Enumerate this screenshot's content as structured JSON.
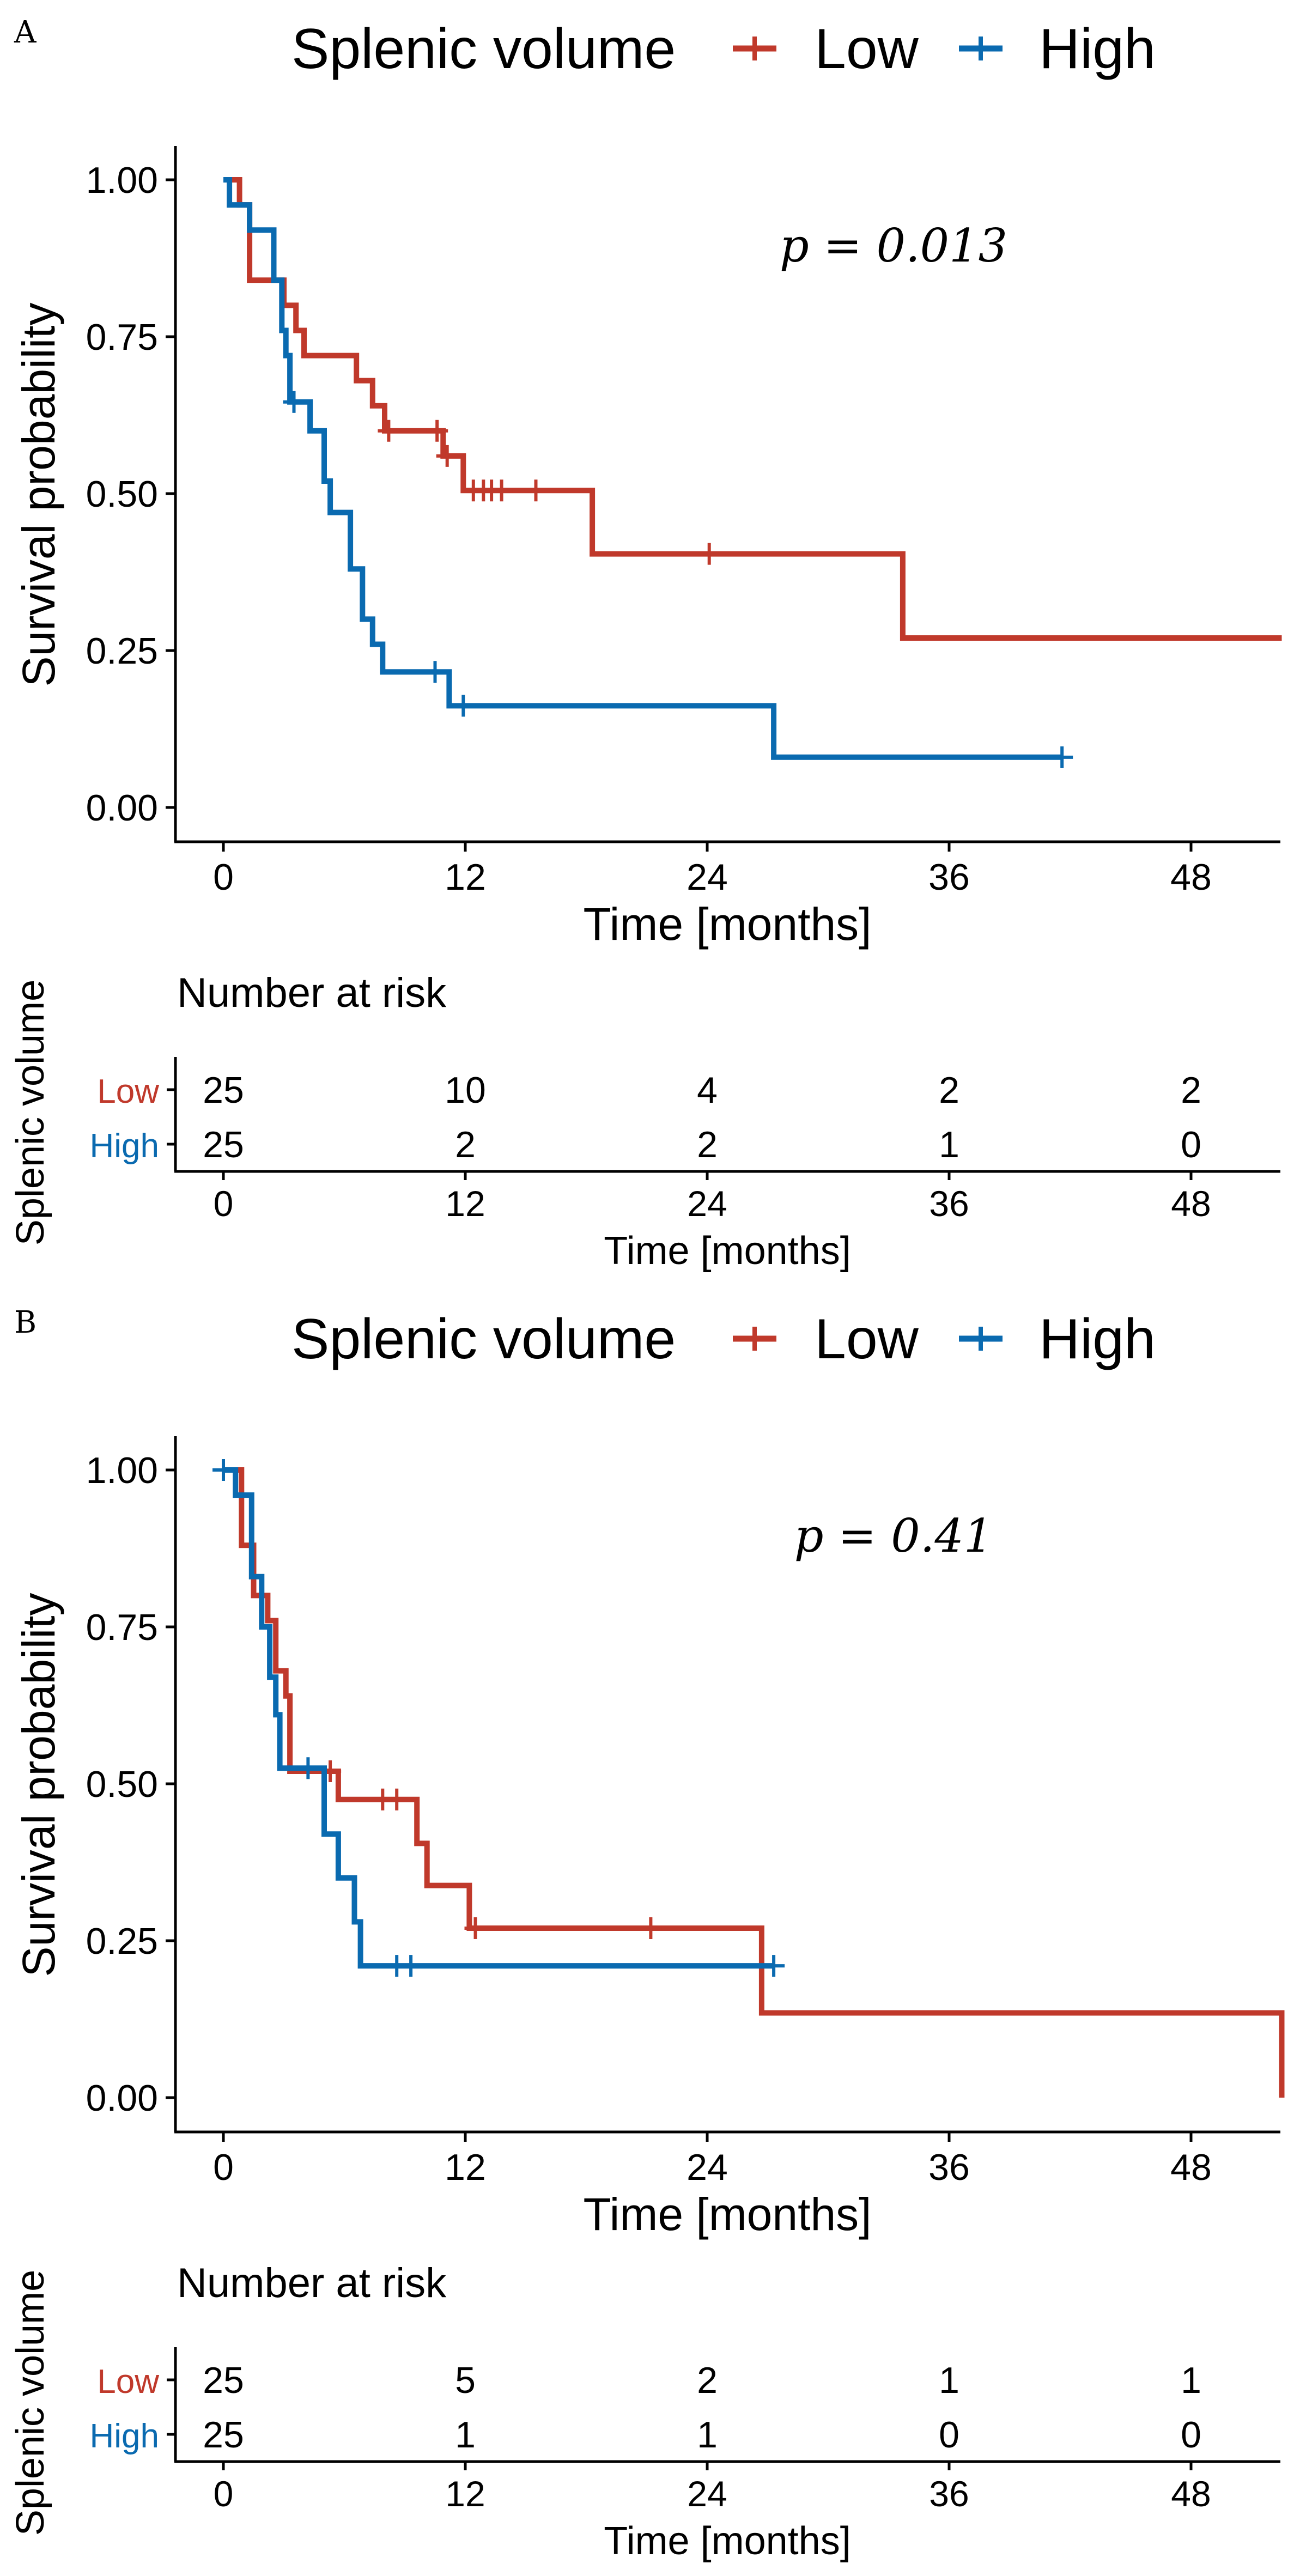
{
  "panels": [
    {
      "letter": "A",
      "legend": {
        "title": "Splenic volume",
        "labels": [
          "Low",
          "High"
        ]
      },
      "pvalue": "p = 0.013",
      "risk_table": {
        "title": "Number at risk",
        "ylabel": "Splenic volume",
        "rows": [
          {
            "label": "Low",
            "values": [
              "25",
              "10",
              "4",
              "2",
              "2"
            ]
          },
          {
            "label": "High",
            "values": [
              "25",
              "2",
              "2",
              "1",
              "0"
            ]
          }
        ],
        "xlabel": "Time [months]",
        "xticks": [
          "0",
          "12",
          "24",
          "36",
          "48"
        ]
      }
    },
    {
      "letter": "B",
      "legend": {
        "title": "Splenic volume",
        "labels": [
          "Low",
          "High"
        ]
      },
      "pvalue": "p = 0.41",
      "risk_table": {
        "title": "Number at risk",
        "ylabel": "Splenic volume",
        "rows": [
          {
            "label": "Low",
            "values": [
              "25",
              "5",
              "2",
              "1",
              "1"
            ]
          },
          {
            "label": "High",
            "values": [
              "25",
              "1",
              "1",
              "0",
              "0"
            ]
          }
        ],
        "xlabel": "Time [months]",
        "xticks": [
          "0",
          "12",
          "24",
          "36",
          "48"
        ]
      }
    }
  ],
  "colors": {
    "low": "#c0392b",
    "high": "#0a6ab0",
    "axis": "#000000"
  },
  "chart_data": [
    {
      "type": "line",
      "step": true,
      "xlabel": "Time [months]",
      "ylabel": "Survival probability",
      "xlim": [
        -2.5,
        52.5
      ],
      "ylim": [
        -0.05,
        1.05
      ],
      "xticks": [
        "0",
        "12",
        "24",
        "36",
        "48"
      ],
      "yticks": [
        "0.00",
        "0.25",
        "0.50",
        "0.75",
        "1.00"
      ],
      "legend_position": "top",
      "series": [
        {
          "name": "Low",
          "color": "#c0392b",
          "points": [
            [
              0,
              1.0
            ],
            [
              0.8,
              1.0
            ],
            [
              0.8,
              0.96
            ],
            [
              1.3,
              0.96
            ],
            [
              1.3,
              0.84
            ],
            [
              3,
              0.84
            ],
            [
              3,
              0.8
            ],
            [
              3.6,
              0.8
            ],
            [
              3.6,
              0.76
            ],
            [
              4,
              0.76
            ],
            [
              4,
              0.72
            ],
            [
              6.6,
              0.72
            ],
            [
              6.6,
              0.68
            ],
            [
              7.4,
              0.68
            ],
            [
              7.4,
              0.64
            ],
            [
              8,
              0.64
            ],
            [
              8,
              0.6
            ],
            [
              10.9,
              0.6
            ],
            [
              10.9,
              0.56
            ],
            [
              11.9,
              0.56
            ],
            [
              11.9,
              0.505
            ],
            [
              18.3,
              0.505
            ],
            [
              18.3,
              0.404
            ],
            [
              33.7,
              0.404
            ],
            [
              33.7,
              0.27
            ],
            [
              52.5,
              0.27
            ]
          ],
          "censor": [
            [
              8.2,
              0.6
            ],
            [
              10.6,
              0.6
            ],
            [
              11.1,
              0.56
            ],
            [
              12.4,
              0.505
            ],
            [
              12.9,
              0.505
            ],
            [
              13.3,
              0.505
            ],
            [
              13.8,
              0.505
            ],
            [
              15.5,
              0.505
            ],
            [
              24.1,
              0.404
            ]
          ]
        },
        {
          "name": "High",
          "color": "#0a6ab0",
          "points": [
            [
              0,
              1.0
            ],
            [
              0.3,
              1.0
            ],
            [
              0.3,
              0.96
            ],
            [
              1.3,
              0.96
            ],
            [
              1.3,
              0.92
            ],
            [
              2.5,
              0.92
            ],
            [
              2.5,
              0.84
            ],
            [
              2.9,
              0.84
            ],
            [
              2.9,
              0.76
            ],
            [
              3.1,
              0.76
            ],
            [
              3.1,
              0.72
            ],
            [
              3.3,
              0.72
            ],
            [
              3.3,
              0.646
            ],
            [
              4.3,
              0.646
            ],
            [
              4.3,
              0.6
            ],
            [
              5,
              0.6
            ],
            [
              5,
              0.52
            ],
            [
              5.3,
              0.52
            ],
            [
              5.3,
              0.47
            ],
            [
              6.3,
              0.47
            ],
            [
              6.3,
              0.38
            ],
            [
              6.9,
              0.38
            ],
            [
              6.9,
              0.3
            ],
            [
              7.4,
              0.3
            ],
            [
              7.4,
              0.26
            ],
            [
              7.9,
              0.26
            ],
            [
              7.9,
              0.216
            ],
            [
              11.2,
              0.216
            ],
            [
              11.2,
              0.162
            ],
            [
              27.3,
              0.162
            ],
            [
              27.3,
              0.08
            ],
            [
              41.6,
              0.08
            ]
          ],
          "censor": [
            [
              3.5,
              0.646
            ],
            [
              10.5,
              0.216
            ],
            [
              11.9,
              0.162
            ],
            [
              41.6,
              0.08
            ]
          ]
        }
      ]
    },
    {
      "type": "line",
      "step": true,
      "xlabel": "Time [months]",
      "ylabel": "Survival probability",
      "xlim": [
        -2.5,
        52.5
      ],
      "ylim": [
        -0.05,
        1.05
      ],
      "xticks": [
        "0",
        "12",
        "24",
        "36",
        "48"
      ],
      "yticks": [
        "0.00",
        "0.25",
        "0.50",
        "0.75",
        "1.00"
      ],
      "legend_position": "top",
      "series": [
        {
          "name": "Low",
          "color": "#c0392b",
          "points": [
            [
              0,
              1.0
            ],
            [
              0.9,
              1.0
            ],
            [
              0.9,
              0.88
            ],
            [
              1.5,
              0.88
            ],
            [
              1.5,
              0.8
            ],
            [
              2.2,
              0.8
            ],
            [
              2.2,
              0.76
            ],
            [
              2.6,
              0.76
            ],
            [
              2.6,
              0.68
            ],
            [
              3.1,
              0.68
            ],
            [
              3.1,
              0.64
            ],
            [
              3.3,
              0.64
            ],
            [
              3.3,
              0.52
            ],
            [
              5.7,
              0.52
            ],
            [
              5.7,
              0.475
            ],
            [
              9.6,
              0.475
            ],
            [
              9.6,
              0.405
            ],
            [
              10.1,
              0.405
            ],
            [
              10.1,
              0.338
            ],
            [
              12.2,
              0.338
            ],
            [
              12.2,
              0.27
            ],
            [
              26.7,
              0.27
            ],
            [
              26.7,
              0.135
            ],
            [
              52.5,
              0.135
            ],
            [
              52.5,
              0.0
            ]
          ],
          "censor": [
            [
              5.3,
              0.52
            ],
            [
              7.9,
              0.475
            ],
            [
              8.6,
              0.475
            ],
            [
              12.5,
              0.27
            ],
            [
              21.2,
              0.27
            ]
          ]
        },
        {
          "name": "High",
          "color": "#0a6ab0",
          "points": [
            [
              0,
              1.0
            ],
            [
              0.6,
              1.0
            ],
            [
              0.6,
              0.96
            ],
            [
              1.4,
              0.96
            ],
            [
              1.4,
              0.83
            ],
            [
              1.9,
              0.83
            ],
            [
              1.9,
              0.75
            ],
            [
              2.3,
              0.75
            ],
            [
              2.3,
              0.67
            ],
            [
              2.6,
              0.67
            ],
            [
              2.6,
              0.61
            ],
            [
              2.8,
              0.61
            ],
            [
              2.8,
              0.525
            ],
            [
              5.0,
              0.525
            ],
            [
              5.0,
              0.42
            ],
            [
              5.7,
              0.42
            ],
            [
              5.7,
              0.35
            ],
            [
              6.5,
              0.35
            ],
            [
              6.5,
              0.28
            ],
            [
              6.8,
              0.28
            ],
            [
              6.8,
              0.21
            ],
            [
              27.3,
              0.21
            ]
          ],
          "censor": [
            [
              0,
              1.0
            ],
            [
              4.2,
              0.525
            ],
            [
              8.6,
              0.21
            ],
            [
              9.3,
              0.21
            ],
            [
              27.3,
              0.21
            ]
          ]
        }
      ]
    }
  ]
}
